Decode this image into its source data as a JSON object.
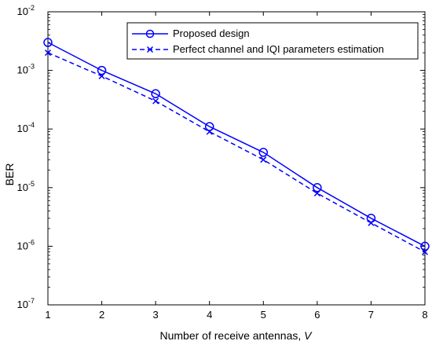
{
  "chart_data": {
    "type": "line",
    "xlabel": "Number of receive antennas, ",
    "xlabel_var": "V",
    "ylabel": "BER",
    "y_scale": "log",
    "xlim": [
      1,
      8
    ],
    "ylim": [
      1e-07,
      0.01
    ],
    "x": [
      1,
      2,
      3,
      4,
      5,
      6,
      7,
      8
    ],
    "x_ticks": [
      "1",
      "2",
      "3",
      "4",
      "5",
      "6",
      "7",
      "8"
    ],
    "y_ticks": [
      {
        "value": 0.01,
        "base": "10",
        "exp": "-2"
      },
      {
        "value": 0.001,
        "base": "10",
        "exp": "-3"
      },
      {
        "value": 0.0001,
        "base": "10",
        "exp": "-4"
      },
      {
        "value": 1e-05,
        "base": "10",
        "exp": "-5"
      },
      {
        "value": 1e-06,
        "base": "10",
        "exp": "-6"
      },
      {
        "value": 1e-07,
        "base": "10",
        "exp": "-7"
      }
    ],
    "grid": false,
    "legend_position": "top-right",
    "series": [
      {
        "name": "Proposed design",
        "values": [
          0.003,
          0.001,
          0.0004,
          0.00011,
          4e-05,
          1e-05,
          3e-06,
          1e-06
        ],
        "marker": "circle",
        "line_style": "solid",
        "color": "#0000ff"
      },
      {
        "name": "Perfect channel and IQI parameters estimation",
        "values": [
          0.002,
          0.0008,
          0.0003,
          9e-05,
          3e-05,
          8e-06,
          2.5e-06,
          8e-07
        ],
        "marker": "x",
        "line_style": "dashed",
        "color": "#0000ff"
      }
    ]
  }
}
